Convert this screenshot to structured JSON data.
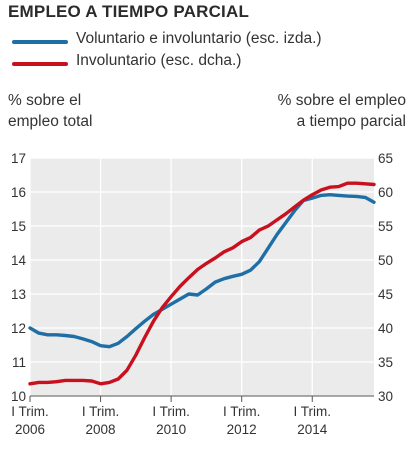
{
  "chart_data": {
    "type": "line",
    "title": "EMPLEO A TIEMPO PARCIAL",
    "left_axis_title": [
      "% sobre el",
      "empleo total"
    ],
    "right_axis_title": [
      "% sobre el empleo",
      "a tiempo parcial"
    ],
    "x_ticks": [
      {
        "line1": "I Trim.",
        "line2": "2006",
        "x": 2006.0
      },
      {
        "line1": "I Trim.",
        "line2": "2008",
        "x": 2008.0
      },
      {
        "line1": "I Trim.",
        "line2": "2010",
        "x": 2010.0
      },
      {
        "line1": "I Trim.",
        "line2": "2012",
        "x": 2012.0
      },
      {
        "line1": "I Trim.",
        "line2": "2014",
        "x": 2014.0
      }
    ],
    "xlim": [
      2006.0,
      2015.75
    ],
    "left_ticks": [
      10,
      11,
      12,
      13,
      14,
      15,
      16,
      17
    ],
    "left_ylim": [
      10,
      17
    ],
    "right_ticks": [
      30,
      35,
      40,
      45,
      50,
      55,
      60,
      65
    ],
    "right_ylim": [
      30,
      65
    ],
    "grid": true,
    "legend_position": "top-left",
    "series": [
      {
        "name": "Voluntario e involuntario (esc. izda.)",
        "axis": "left",
        "color": "#1f6fa6",
        "x": [
          2006.0,
          2006.25,
          2006.5,
          2006.75,
          2007.0,
          2007.25,
          2007.5,
          2007.75,
          2008.0,
          2008.25,
          2008.5,
          2008.75,
          2009.0,
          2009.25,
          2009.5,
          2009.75,
          2010.0,
          2010.25,
          2010.5,
          2010.75,
          2011.0,
          2011.25,
          2011.5,
          2011.75,
          2012.0,
          2012.25,
          2012.5,
          2012.75,
          2013.0,
          2013.25,
          2013.5,
          2013.75,
          2014.0,
          2014.25,
          2014.5,
          2014.75,
          2015.0,
          2015.25,
          2015.5,
          2015.75
        ],
        "values": [
          12.0,
          11.85,
          11.8,
          11.8,
          11.78,
          11.75,
          11.68,
          11.6,
          11.48,
          11.45,
          11.55,
          11.75,
          11.98,
          12.2,
          12.4,
          12.55,
          12.7,
          12.85,
          13.0,
          12.97,
          13.15,
          13.35,
          13.45,
          13.52,
          13.58,
          13.7,
          13.95,
          14.35,
          14.75,
          15.1,
          15.45,
          15.75,
          15.82,
          15.9,
          15.92,
          15.9,
          15.88,
          15.87,
          15.84,
          15.7
        ]
      },
      {
        "name": "Involuntario (esc. dcha.)",
        "axis": "right",
        "color": "#c8101e",
        "x": [
          2006.0,
          2006.25,
          2006.5,
          2006.75,
          2007.0,
          2007.25,
          2007.5,
          2007.75,
          2008.0,
          2008.25,
          2008.5,
          2008.75,
          2009.0,
          2009.25,
          2009.5,
          2009.75,
          2010.0,
          2010.25,
          2010.5,
          2010.75,
          2011.0,
          2011.25,
          2011.5,
          2011.75,
          2012.0,
          2012.25,
          2012.5,
          2012.75,
          2013.0,
          2013.25,
          2013.5,
          2013.75,
          2014.0,
          2014.25,
          2014.5,
          2014.75,
          2015.0,
          2015.25,
          2015.5,
          2015.75
        ],
        "values": [
          31.8,
          32.0,
          32.0,
          32.1,
          32.3,
          32.3,
          32.3,
          32.2,
          31.8,
          32.0,
          32.5,
          33.8,
          36.0,
          38.6,
          41.0,
          43.0,
          44.6,
          46.1,
          47.4,
          48.6,
          49.5,
          50.3,
          51.2,
          51.8,
          52.7,
          53.3,
          54.4,
          55.0,
          55.9,
          56.8,
          57.8,
          58.8,
          59.6,
          60.3,
          60.7,
          60.8,
          61.3,
          61.3,
          61.2,
          61.1
        ]
      }
    ]
  }
}
